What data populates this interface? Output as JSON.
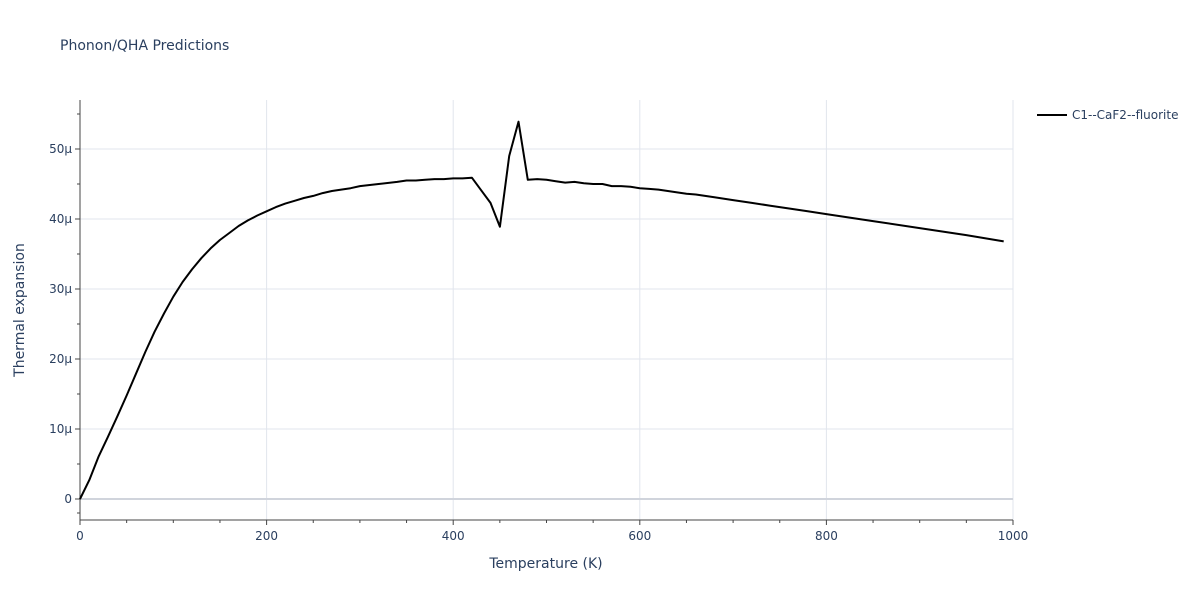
{
  "chart_data": {
    "type": "line",
    "title": "Phonon/QHA Predictions",
    "xlabel": "Temperature (K)",
    "ylabel": "Thermal expansion",
    "xlim": [
      0,
      1000
    ],
    "ylim": [
      -3e-06,
      5.7e-05
    ],
    "x_ticks": [
      0,
      200,
      400,
      600,
      800,
      1000
    ],
    "x_tick_labels": [
      "0",
      "200",
      "400",
      "600",
      "800",
      "1000"
    ],
    "y_ticks": [
      0,
      1e-05,
      2e-05,
      3e-05,
      4e-05,
      5e-05
    ],
    "y_tick_labels": [
      "0",
      "10μ",
      "20μ",
      "30μ",
      "40μ",
      "50μ"
    ],
    "grid": true,
    "legend_position": "top-right",
    "series": [
      {
        "name": "C1--CaF2--fluorite",
        "color": "#000000",
        "x": [
          0,
          10,
          20,
          30,
          40,
          50,
          60,
          70,
          80,
          90,
          100,
          110,
          120,
          130,
          140,
          150,
          160,
          170,
          180,
          190,
          200,
          210,
          220,
          230,
          240,
          250,
          260,
          270,
          280,
          290,
          300,
          320,
          340,
          350,
          360,
          370,
          380,
          390,
          400,
          410,
          420,
          430,
          440,
          450,
          460,
          470,
          480,
          490,
          500,
          510,
          520,
          530,
          540,
          550,
          560,
          570,
          580,
          590,
          600,
          610,
          620,
          630,
          640,
          650,
          660,
          680,
          700,
          720,
          740,
          760,
          780,
          800,
          850,
          900,
          950,
          990
        ],
        "y": [
          0,
          2.7e-06,
          6.1e-06,
          8.9e-06,
          1.18e-05,
          1.48e-05,
          1.79e-05,
          2.1e-05,
          2.39e-05,
          2.65e-05,
          2.89e-05,
          3.1e-05,
          3.28e-05,
          3.44e-05,
          3.58e-05,
          3.7e-05,
          3.8e-05,
          3.9e-05,
          3.98e-05,
          4.05e-05,
          4.11e-05,
          4.17e-05,
          4.22e-05,
          4.26e-05,
          4.3e-05,
          4.33e-05,
          4.37e-05,
          4.4e-05,
          4.42e-05,
          4.44e-05,
          4.47e-05,
          4.5e-05,
          4.53e-05,
          4.55e-05,
          4.55e-05,
          4.56e-05,
          4.57e-05,
          4.57e-05,
          4.58e-05,
          4.58e-05,
          4.59e-05,
          4.41e-05,
          4.23e-05,
          3.89e-05,
          4.9e-05,
          5.39e-05,
          4.56e-05,
          4.57e-05,
          4.56e-05,
          4.54e-05,
          4.52e-05,
          4.53e-05,
          4.51e-05,
          4.5e-05,
          4.5e-05,
          4.47e-05,
          4.47e-05,
          4.46e-05,
          4.44e-05,
          4.43e-05,
          4.42e-05,
          4.4e-05,
          4.38e-05,
          4.36e-05,
          4.35e-05,
          4.31e-05,
          4.27e-05,
          4.23e-05,
          4.19e-05,
          4.15e-05,
          4.11e-05,
          4.07e-05,
          3.97e-05,
          3.87e-05,
          3.77e-05,
          3.68e-05
        ]
      }
    ]
  }
}
